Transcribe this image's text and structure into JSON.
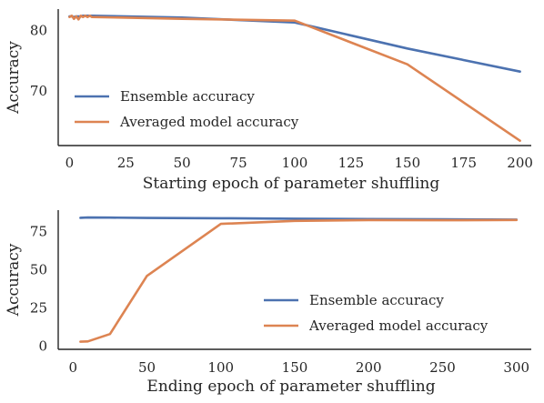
{
  "chart_data": [
    {
      "type": "line",
      "xlabel": "Starting epoch of parameter shuffling",
      "ylabel": "Accuracy",
      "xlim": [
        -5,
        205
      ],
      "ylim": [
        61,
        83.5
      ],
      "xticks": [
        0,
        25,
        50,
        75,
        100,
        125,
        150,
        175,
        200
      ],
      "yticks": [
        70,
        80
      ],
      "legend_position": "lower-left",
      "series": [
        {
          "name": "Ensemble accuracy",
          "color": "#4c72b0",
          "x": [
            0,
            1,
            2,
            3,
            4,
            5,
            6,
            7,
            8,
            9,
            10,
            50,
            100,
            150,
            200
          ],
          "y": [
            82.3,
            82.3,
            82.2,
            82.3,
            82.3,
            82.3,
            82.4,
            82.4,
            82.4,
            82.4,
            82.4,
            82.1,
            81.3,
            77.0,
            73.2
          ]
        },
        {
          "name": "Averaged model accuracy",
          "color": "#dd8452",
          "x": [
            0,
            1,
            2,
            3,
            4,
            5,
            6,
            7,
            8,
            9,
            10,
            50,
            100,
            150,
            200
          ],
          "y": [
            82.2,
            82.4,
            81.9,
            82.3,
            81.8,
            82.4,
            82.2,
            82.4,
            82.2,
            82.4,
            82.2,
            81.9,
            81.6,
            74.4,
            61.8
          ]
        }
      ]
    },
    {
      "type": "line",
      "xlabel": "Ending epoch of parameter shuffling",
      "ylabel": "Accuracy",
      "xlim": [
        -10,
        310
      ],
      "ylim": [
        -2,
        89
      ],
      "xticks": [
        0,
        50,
        100,
        150,
        200,
        250,
        300
      ],
      "yticks": [
        0,
        25,
        50,
        75
      ],
      "legend_position": "lower-right",
      "series": [
        {
          "name": "Ensemble accuracy",
          "color": "#4c72b0",
          "x": [
            5,
            10,
            25,
            50,
            100,
            150,
            200,
            250,
            300
          ],
          "y": [
            84.0,
            84.2,
            84.1,
            83.9,
            83.7,
            83.4,
            83.2,
            83.0,
            82.8
          ]
        },
        {
          "name": "Averaged model accuracy",
          "color": "#dd8452",
          "x": [
            5,
            10,
            25,
            50,
            100,
            150,
            200,
            250,
            300
          ],
          "y": [
            3.0,
            3.2,
            8.0,
            46.0,
            80.0,
            82.0,
            82.5,
            82.4,
            82.6
          ]
        }
      ]
    }
  ]
}
